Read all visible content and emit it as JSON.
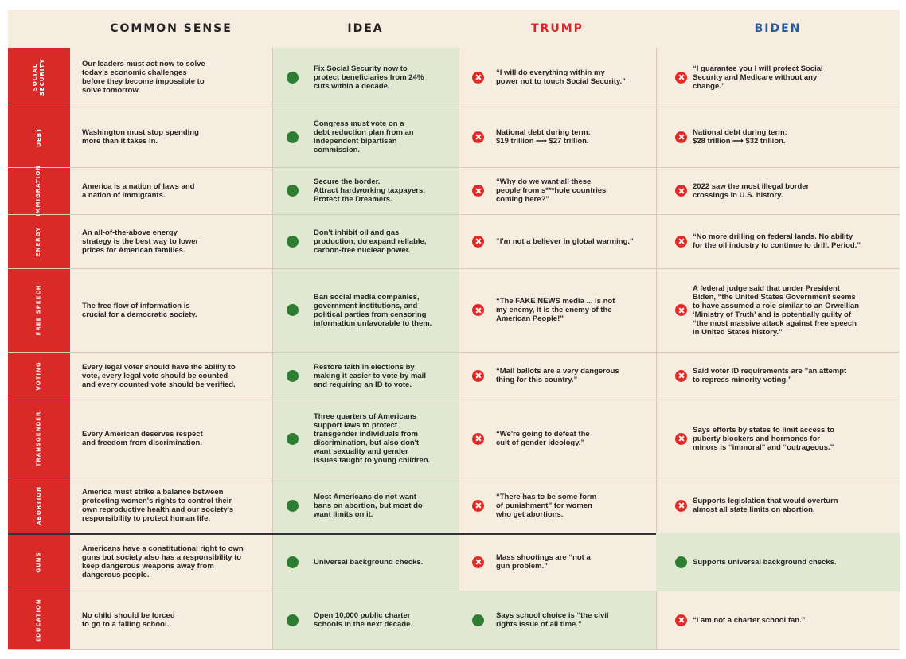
{
  "headers": {
    "common_sense": "COMMON SENSE",
    "idea": "IDEA",
    "trump": "TRUMP",
    "biden": "BIDEN"
  },
  "colors": {
    "accent_red": "#da2a27",
    "good_green": "#2e7d32",
    "bad_red": "#e02b28",
    "trump_header": "#d9262a",
    "biden_header": "#2b5a9c",
    "idea_column_bg": "#e1e8d2"
  },
  "rows": [
    {
      "topic": "SOCIAL\nSECURITY",
      "common_sense": "Our leaders must act now to solve\ntoday's economic challenges\nbefore they become impossible to\nsolve tomorrow.",
      "idea": "Fix Social Security now to\nprotect beneficiaries from 24%\ncuts within a decade.",
      "trump": "“I will do everything within my\npower not to touch Social Security.”",
      "trump_status": "bad",
      "biden": "“I guarantee you I will protect Social\nSecurity and Medicare without any\nchange.”",
      "biden_status": "bad"
    },
    {
      "topic": "DEBT",
      "common_sense": "Washington must stop spending\nmore than it takes in.",
      "idea": "Congress must vote on a\ndebt reduction plan from an\nindependent bipartisan\ncommission.",
      "trump": "National debt during term:\n$19 trillion ⟶ $27 trillion.",
      "trump_status": "bad",
      "biden": "National debt during term:\n$28 trillion ⟶ $32 trillion.",
      "biden_status": "bad"
    },
    {
      "topic": "IMMIGRATION",
      "common_sense": "America is a nation of laws and\na nation of immigrants.",
      "idea": "Secure the border.\nAttract hardworking taxpayers.\nProtect the Dreamers.",
      "trump": "“Why do we want all these\npeople from s***hole countries\ncoming here?”",
      "trump_status": "bad",
      "biden": "2022 saw the most illegal border\ncrossings in U.S. history.",
      "biden_status": "bad"
    },
    {
      "topic": "ENERGY",
      "common_sense": "An all-of-the-above energy\nstrategy is the best way to lower\nprices for American families.",
      "idea": "Don't inhibit oil and gas\nproduction; do expand reliable,\ncarbon-free nuclear power.",
      "trump": "“I'm not a believer in global warming.”",
      "trump_status": "bad",
      "biden": "“No more drilling on federal lands. No ability\nfor the oil industry to continue to drill. Period.”",
      "biden_status": "bad"
    },
    {
      "topic": "FREE SPEECH",
      "common_sense": "The free flow of information is\ncrucial for a democratic society.",
      "idea": "Ban social media companies,\ngovernment institutions, and\npolitical parties from censoring\ninformation unfavorable to them.",
      "trump": "“The FAKE NEWS media ... is not\nmy enemy, it is the enemy of the\nAmerican People!”",
      "trump_status": "bad",
      "biden": "A federal judge said that under President\nBiden, “the United States Government seems\nto have assumed a role similar to an Orwellian\n‘Ministry of Truth’ and is potentially guilty of\n“the most massive attack against free speech\nin United States history.”",
      "biden_status": "bad"
    },
    {
      "topic": "VOTING",
      "common_sense": "Every legal voter should have the ability to\nvote, every legal vote should be counted\nand every counted vote should be verified.",
      "idea": "Restore faith in elections by\nmaking it easier to vote by mail\nand requiring an ID to vote.",
      "trump": "“Mail ballots are a very dangerous\nthing for this country.”",
      "trump_status": "bad",
      "biden": "Said voter ID requirements are ”an attempt\nto repress minority voting.”",
      "biden_status": "bad"
    },
    {
      "topic": "TRANSGENDER",
      "common_sense": "Every American deserves respect\nand freedom from discrimination.",
      "idea": "Three quarters of Americans\nsupport laws to protect\ntransgender individuals from\ndiscrimination, but also don't\nwant sexuality and gender\nissues taught to young children.",
      "trump": "“We're going to defeat the\ncult of gender ideology.”",
      "trump_status": "bad",
      "biden": "Says efforts by states to limit access to\npuberty blockers and hormones for\nminors is “immoral” and “outrageous.”",
      "biden_status": "bad"
    },
    {
      "topic": "ABORTION",
      "common_sense": "America must strike a balance between\nprotecting women's rights to control their\nown reproductive health and our society's\nresponsibility to protect human life.",
      "idea": "Most Americans do not want\nbans on abortion, but most do\nwant limits on it.",
      "trump": "“There has to be some form\nof punishment” for women\nwho get abortions.",
      "trump_status": "bad",
      "biden": "Supports legislation that would overturn\nalmost all state limits on abortion.",
      "biden_status": "bad"
    },
    {
      "topic": "GUNS",
      "common_sense": "Americans have a constitutional right to own\nguns but society also has a responsibility to\nkeep dangerous weapons away from\ndangerous people.",
      "idea": "Universal background checks.",
      "trump": "Mass shootings are “not a\ngun problem.”",
      "trump_status": "bad",
      "biden": "Supports universal background checks.",
      "biden_status": "good"
    },
    {
      "topic": "EDUCATION",
      "common_sense": "No child should be forced\nto go to a failing school.",
      "idea": "Open 10,000 public charter\nschools in the next decade.",
      "trump": "Says school choice is “the civil\nrights issue of all time.”",
      "trump_status": "good",
      "biden": "“I am not a charter school fan.”",
      "biden_status": "bad"
    }
  ]
}
